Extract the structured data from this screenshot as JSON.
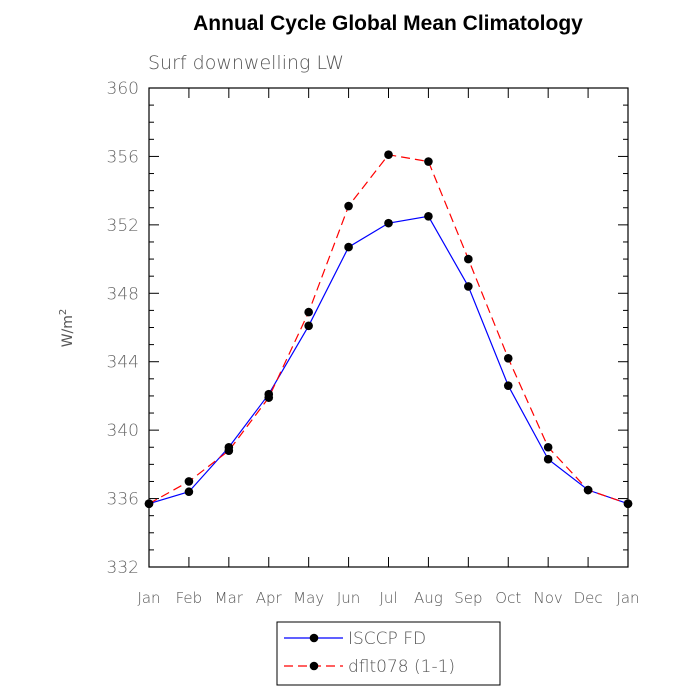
{
  "chart_data": {
    "type": "line",
    "title": "Annual Cycle Global Mean Climatology",
    "subtitle": "Surf downwelling LW",
    "ylabel": "W/m",
    "ylabel_sup": "2",
    "categories": [
      "Jan",
      "Feb",
      "Mar",
      "Apr",
      "May",
      "Jun",
      "Jul",
      "Aug",
      "Sep",
      "Oct",
      "Nov",
      "Dec",
      "Jan"
    ],
    "ylim": [
      332,
      360
    ],
    "yticks": [
      332,
      336,
      340,
      344,
      348,
      352,
      356,
      360
    ],
    "legend_position": "bottom-center",
    "series": [
      {
        "name": "ISCCP FD",
        "color": "#0000ff",
        "dash": "solid",
        "values": [
          335.7,
          336.4,
          339.0,
          342.1,
          346.1,
          350.7,
          352.1,
          352.5,
          348.4,
          342.6,
          338.3,
          336.5,
          335.7
        ]
      },
      {
        "name": "dflt078 (1-1)",
        "color": "#ff0000",
        "dash": "dashed",
        "values": [
          335.7,
          337.0,
          338.8,
          341.9,
          346.9,
          353.1,
          356.1,
          355.7,
          350.0,
          344.2,
          339.0,
          336.5,
          335.7
        ]
      }
    ]
  }
}
